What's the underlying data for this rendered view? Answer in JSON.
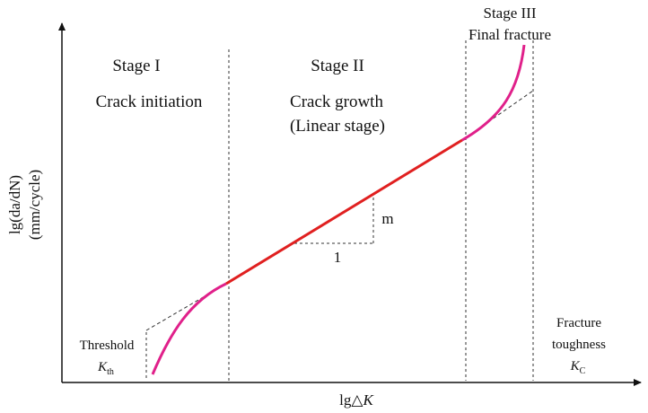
{
  "diagram": {
    "y_axis_label_1": "lg(da/dN)",
    "y_axis_label_2": "(mm/cycle)",
    "x_axis_label_main": "lg△",
    "x_axis_label_var": "K",
    "stage1": {
      "title": "Stage I",
      "subtitle": "Crack initiation"
    },
    "stage2": {
      "title": "Stage II",
      "subtitle_1": "Crack growth",
      "subtitle_2": "(Linear stage)"
    },
    "stage3": {
      "title": "Stage III",
      "subtitle": "Final fracture"
    },
    "slope_rise_label": "m",
    "slope_run_label": "1",
    "threshold": {
      "label": "Threshold",
      "symbol": "K",
      "subscript": "th"
    },
    "toughness": {
      "label_1": "Fracture",
      "label_2": "toughness",
      "symbol": "K",
      "subscript": "C"
    },
    "colors": {
      "linear_segment": "#e02020",
      "curved_segments": "#e0208a",
      "axes": "#111111",
      "guides": "#333333"
    }
  }
}
